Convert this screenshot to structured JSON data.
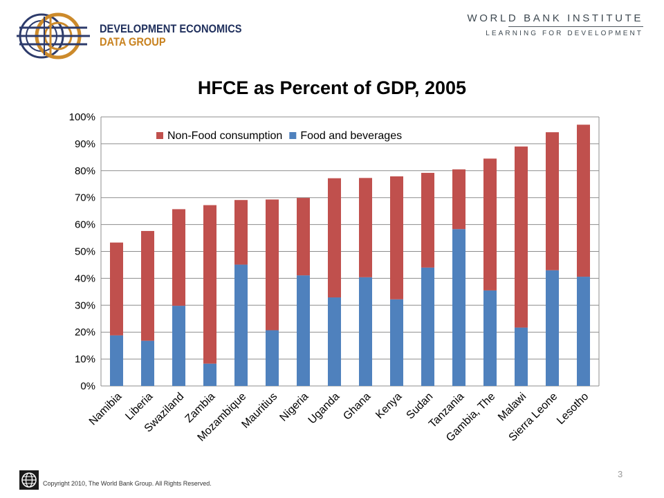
{
  "header": {
    "left_logo_line1": "DEVELOPMENT ECONOMICS",
    "left_logo_line2": "DATA GROUP",
    "right_logo_name": "WORLD BANK INSTITUTE",
    "right_logo_tagline": "LEARNING FOR DEVELOPMENT"
  },
  "footer": {
    "copyright": "Copyright 2010, The World Bank Group. All Rights Reserved.",
    "page_number": "3"
  },
  "colors": {
    "food": "#4f81bd",
    "nonfood": "#c0504d",
    "grid": "#8c8c8c"
  },
  "chart_data": {
    "type": "bar",
    "stacked": true,
    "title": "HFCE as Percent of GDP,  2005",
    "xlabel": "",
    "ylabel": "",
    "ylim": [
      0,
      100
    ],
    "y_ticks": [
      "0%",
      "10%",
      "20%",
      "30%",
      "40%",
      "50%",
      "60%",
      "70%",
      "80%",
      "90%",
      "100%"
    ],
    "grid": true,
    "legend_position": "top-left inside plot",
    "categories": [
      "Namibia",
      "Liberia",
      "Swaziland",
      "Zambia",
      "Mozambique",
      "Mauritius",
      "Nigeria",
      "Uganda",
      "Ghana",
      "Kenya",
      "Sudan",
      "Tanzania",
      "Gambia, The",
      "Malawi",
      "Sierra Leone",
      "Lesotho"
    ],
    "series": [
      {
        "name": "Food and beverages",
        "color": "#4f81bd",
        "values": [
          18.8,
          16.8,
          29.8,
          8.3,
          45.1,
          20.7,
          41.1,
          32.9,
          40.4,
          32.2,
          44.0,
          58.3,
          35.5,
          21.7,
          43.0,
          40.6
        ]
      },
      {
        "name": "Non-Food consumption",
        "color": "#c0504d",
        "values": [
          34.5,
          40.8,
          35.9,
          58.9,
          24.0,
          48.6,
          28.8,
          44.3,
          36.9,
          45.7,
          35.2,
          22.2,
          49.0,
          67.3,
          51.3,
          56.5
        ]
      }
    ],
    "legend_order": [
      "Non-Food consumption",
      "Food and beverages"
    ]
  }
}
